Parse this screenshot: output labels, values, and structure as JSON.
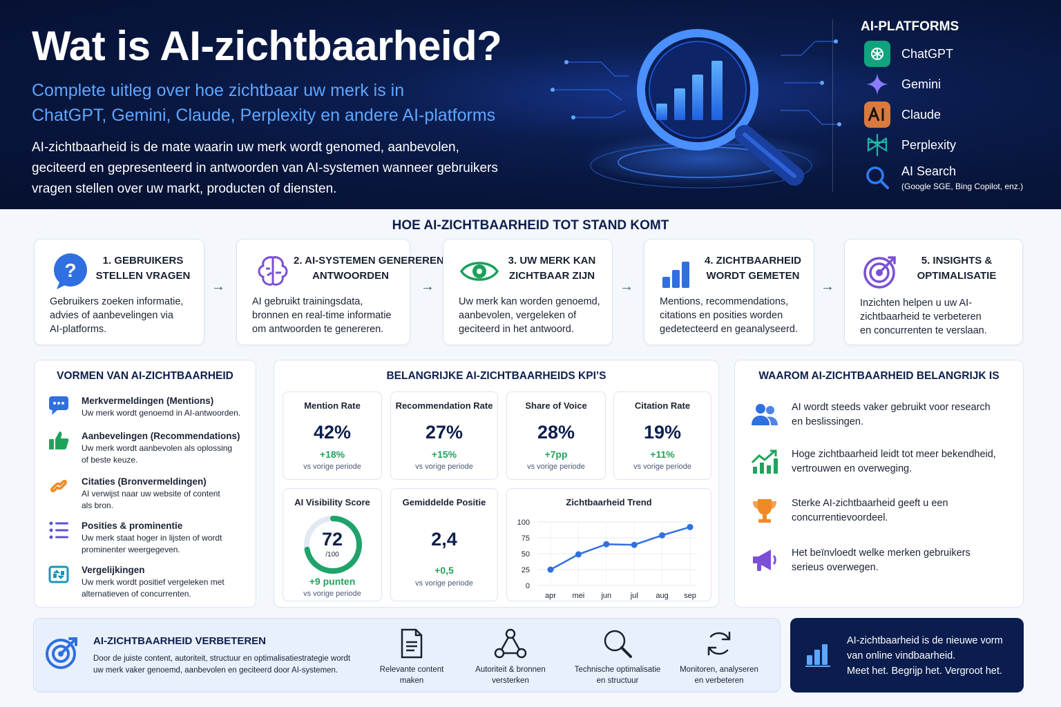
{
  "hero": {
    "title": "Wat is AI-zichtbaarheid?",
    "subtitle_line1": "Complete uitleg over hoe zichtbaar uw merk is in",
    "subtitle_line2": "ChatGPT, Gemini, Claude, Perplexity en andere AI-platforms",
    "description": "AI-zichtbaarheid is de mate waarin uw merk wordt genomed, aanbevolen, geciteerd en gepresenteerd in antwoorden van AI-systemen wanneer gebruikers vragen stellen over uw markt, producten of diensten."
  },
  "platforms": {
    "title": "AI-PLATFORMS",
    "items": [
      {
        "name": "ChatGPT",
        "icon": "chatgpt-icon",
        "color": "#10a37f"
      },
      {
        "name": "Gemini",
        "icon": "gemini-icon",
        "color": "#7b6cf6"
      },
      {
        "name": "Claude",
        "icon": "claude-icon",
        "color": "#d97a3f"
      },
      {
        "name": "Perplexity",
        "icon": "perplexity-icon",
        "color": "#21b8a6"
      },
      {
        "name": "AI Search",
        "icon": "search-icon",
        "color": "#2f7df6",
        "note": "(Google SGE, Bing Copilot, enz.)"
      }
    ]
  },
  "process": {
    "title": "HOE AI-ZICHTBAARHEID TOT STAND KOMT",
    "steps": [
      {
        "title1": "1. GEBRUIKERS",
        "title2": "STELLEN VRAGEN",
        "desc1": "Gebruikers zoeken informatie,",
        "desc2": "advies of aanbevelingen via",
        "desc3": "AI-platforms."
      },
      {
        "title1": "2. AI-SYSTEMEN GENEREREN",
        "title2": "ANTWOORDEN",
        "desc1": "AI gebruikt trainingsdata,",
        "desc2": "bronnen en real-time informatie",
        "desc3": "om antwoorden te genereren."
      },
      {
        "title1": "3. UW MERK KAN",
        "title2": "ZICHTBAAR ZIJN",
        "desc1": "Uw merk kan worden genoemd,",
        "desc2": "aanbevolen, vergeleken of",
        "desc3": "geciteerd in het antwoord."
      },
      {
        "title1": "4. ZICHTBAARHEID",
        "title2": "WORDT GEMETEN",
        "desc1": "Mentions, recommendations,",
        "desc2": "citations en posities worden",
        "desc3": "gedetecteerd en geanalyseerd."
      },
      {
        "title1": "5. INSIGHTS &",
        "title2": "OPTIMALISATIE",
        "desc1": "Inzichten helpen u uw AI-",
        "desc2": "zichtbaarheid te verbeteren",
        "desc3": "en concurrenten te verslaan."
      }
    ],
    "arrow": "→"
  },
  "forms": {
    "title": "VORMEN VAN AI-ZICHTBAARHEID",
    "items": [
      {
        "title": "Merkvermeldingen (Mentions)",
        "desc": "Uw merk wordt genoemd in AI-antwoorden."
      },
      {
        "title": "Aanbevelingen (Recommendations)",
        "desc1": "Uw merk wordt aanbevolen als oplossing",
        "desc2": "of beste keuze."
      },
      {
        "title": "Citaties (Bronvermeldingen)",
        "desc1": "AI verwijst naar uw website of content",
        "desc2": "als bron."
      },
      {
        "title": "Posities & prominentie",
        "desc1": "Uw merk staat hoger in lijsten of wordt",
        "desc2": "prominenter weergegeven."
      },
      {
        "title": "Vergelijkingen",
        "desc1": "Uw merk wordt positief vergeleken met",
        "desc2": "alternatieven of concurrenten."
      }
    ]
  },
  "kpis": {
    "title": "BELANGRIJKE AI-ZICHTBAARHEIDS KPI’S",
    "cards": [
      {
        "label": "Mention Rate",
        "value": "42%",
        "delta": "+18%",
        "vs": "vs vorige periode"
      },
      {
        "label": "Recommendation Rate",
        "value": "27%",
        "delta": "+15%",
        "vs": "vs vorige periode"
      },
      {
        "label": "Share of Voice",
        "value": "28%",
        "delta": "+7pp",
        "vs": "vs vorige periode"
      },
      {
        "label": "Citation Rate",
        "value": "19%",
        "delta": "+11%",
        "vs": "vs vorige periode"
      }
    ],
    "score": {
      "label": "AI Visibility Score",
      "value": "72",
      "max": "/100",
      "fraction": 0.72,
      "delta": "+9 punten",
      "vs": "vs vorige periode"
    },
    "position": {
      "label": "Gemiddelde Positie",
      "value": "2,4",
      "delta": "+0,5",
      "vs": "vs vorige periode"
    }
  },
  "chart_data": {
    "type": "line",
    "title": "Zichtbaarheid Trend",
    "categories": [
      "apr",
      "mei",
      "jun",
      "jul",
      "aug",
      "sep"
    ],
    "values": [
      25,
      49,
      65,
      64,
      79,
      92
    ],
    "ylim": [
      0,
      100
    ],
    "yticks": [
      0,
      25,
      50,
      75,
      100
    ],
    "grid": true,
    "color": "#2f6fe0"
  },
  "why": {
    "title": "WAAROM AI-ZICHTBAARHEID BELANGRIJK IS",
    "items": [
      {
        "line1": "AI wordt steeds vaker gebruikt voor research",
        "line2": "en beslissingen."
      },
      {
        "line1": "Hoge zichtbaarheid leidt tot meer bekendheid,",
        "line2": "vertrouwen en overweging."
      },
      {
        "line1": "Sterke AI-zichtbaarheid geeft u een",
        "line2": "concurrentievoordeel."
      },
      {
        "line1": "Het beïnvloedt welke merken gebruikers",
        "line2": "serieus overwegen."
      }
    ]
  },
  "improve": {
    "title": "AI-ZICHTBAARHEID VERBETEREN",
    "desc1": "Door de juiste content, autoriteit, structuur en optimalisatiestrategie wordt",
    "desc2": "uw merk vaker genoemd, aanbevolen en geciteerd door AI-systemen.",
    "steps": [
      {
        "line1": "Relevante content",
        "line2": "maken"
      },
      {
        "line1": "Autoriteit & bronnen",
        "line2": "versterken"
      },
      {
        "line1": "Technische optimalisatie",
        "line2": "en structuur"
      },
      {
        "line1": "Monitoren, analyseren",
        "line2": "en verbeteren"
      }
    ]
  },
  "callout": {
    "line1": "AI-zichtbaarheid is de nieuwe vorm",
    "line2": "van online vindbaarheid.",
    "line3": "Meet het. Begrijp het. Vergroot het."
  }
}
